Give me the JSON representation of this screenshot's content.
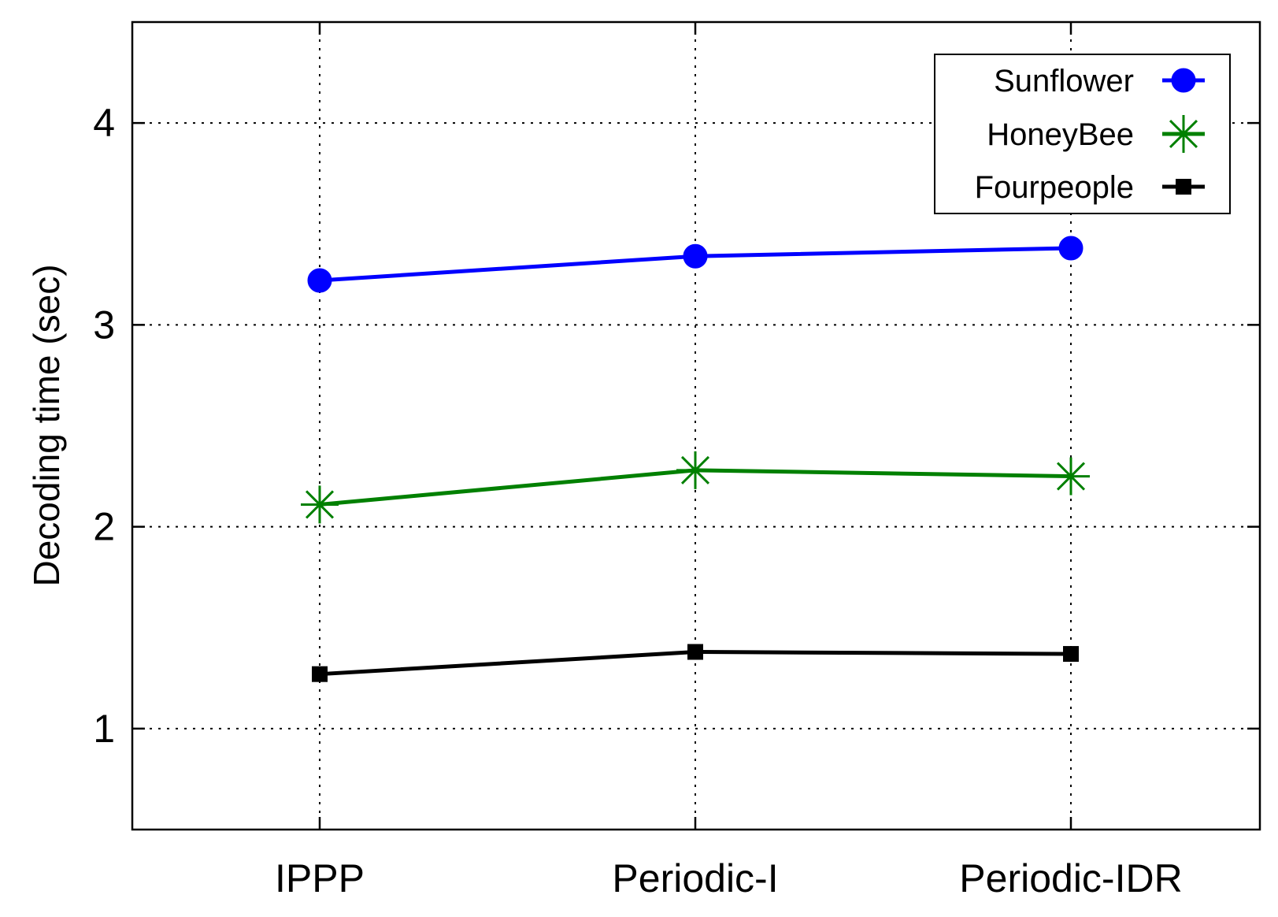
{
  "chart_data": {
    "type": "line",
    "title": "",
    "xlabel": "",
    "ylabel": "Decoding time (sec)",
    "categories": [
      "IPPP",
      "Periodic-I",
      "Periodic-IDR"
    ],
    "ylim": [
      0.5,
      4.5
    ],
    "yticks": [
      1,
      2,
      3,
      4
    ],
    "grid": true,
    "legend_position": "top-right",
    "series": [
      {
        "name": "Sunflower",
        "values": [
          3.22,
          3.34,
          3.38
        ],
        "color": "#0000ff",
        "marker": "circle"
      },
      {
        "name": "HoneyBee",
        "values": [
          2.11,
          2.28,
          2.25
        ],
        "color": "#008000",
        "marker": "asterisk"
      },
      {
        "name": "Fourpeople",
        "values": [
          1.27,
          1.38,
          1.37
        ],
        "color": "#000000",
        "marker": "square"
      }
    ]
  }
}
